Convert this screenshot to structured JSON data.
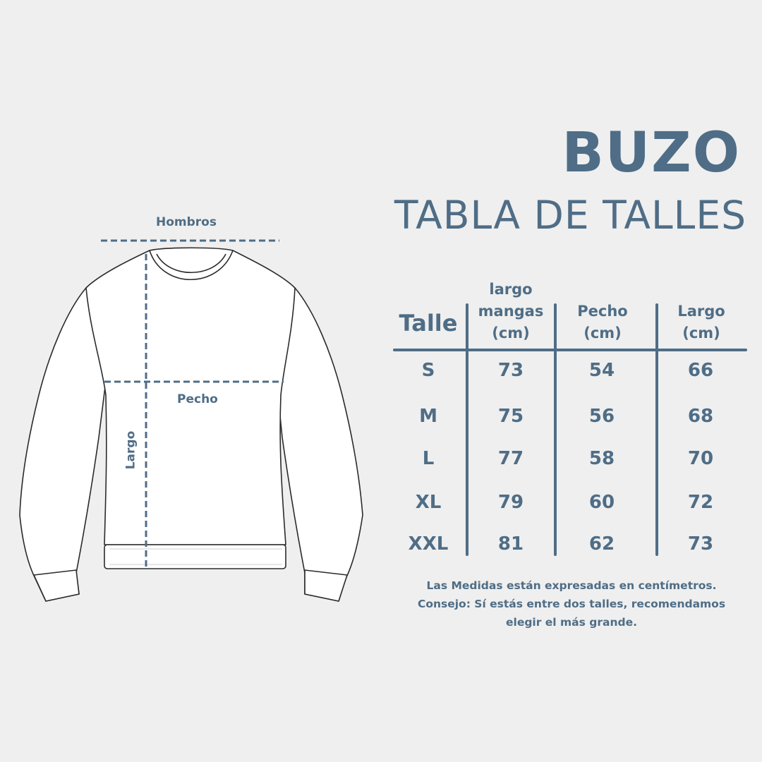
{
  "title": "BUZO",
  "subtitle": "TABLA DE TALLES",
  "accent_color": "#4f6d86",
  "background_color": "#efefef",
  "diagram": {
    "labels": {
      "shoulders": "Hombros",
      "chest": "Pecho",
      "length": "Largo"
    },
    "icon": "sweatshirt-outline"
  },
  "table": {
    "headers": [
      {
        "lines": [
          "Talle"
        ]
      },
      {
        "lines": [
          "largo",
          "mangas",
          "(cm)"
        ]
      },
      {
        "lines": [
          "Pecho",
          "(cm)"
        ]
      },
      {
        "lines": [
          "Largo",
          "(cm)"
        ]
      }
    ],
    "rows": [
      {
        "size": "S",
        "sleeve": "73",
        "chest": "54",
        "length": "66"
      },
      {
        "size": "M",
        "sleeve": "75",
        "chest": "56",
        "length": "68"
      },
      {
        "size": "L",
        "sleeve": "77",
        "chest": "58",
        "length": "70"
      },
      {
        "size": "XL",
        "sleeve": "79",
        "chest": "60",
        "length": "72"
      },
      {
        "size": "XXL",
        "sleeve": "81",
        "chest": "62",
        "length": "73"
      }
    ]
  },
  "notes": [
    "Las Medidas están expresadas en centímetros.",
    "Consejo: Sí estás entre dos talles, recomendamos",
    "elegir el más grande."
  ]
}
